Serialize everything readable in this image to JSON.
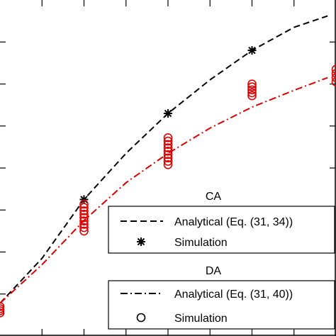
{
  "chart_data": {
    "type": "line",
    "title": "",
    "xlabel": "",
    "ylabel": "",
    "xlim": [
      0,
      8
    ],
    "ylim": [
      0,
      8
    ],
    "xticks": [
      1,
      2,
      3,
      4,
      5,
      6,
      7
    ],
    "yticks": [
      1,
      2,
      3,
      4,
      5,
      6,
      7
    ],
    "grid": false,
    "legend_placement": "bottom-right",
    "colors": {
      "ca": "#000000",
      "da": "#e00000"
    },
    "series": [
      {
        "name": "Analytical (Eq. (31, 34))",
        "group": "CA",
        "style": "dashed",
        "x": [
          0.0,
          1.0,
          2.0,
          3.0,
          4.0,
          5.0,
          6.0,
          7.0,
          7.8
        ],
        "y": [
          0.78,
          1.85,
          3.25,
          4.35,
          5.3,
          6.1,
          6.8,
          7.35,
          7.62
        ]
      },
      {
        "name": "Simulation",
        "group": "CA",
        "marker": "star",
        "x": [
          2.0,
          4.0,
          6.0
        ],
        "y": [
          3.25,
          5.3,
          6.8
        ]
      },
      {
        "name": "Analytical (Eq. (31, 40))",
        "group": "DA",
        "style": "dashdot",
        "x": [
          0.0,
          1.0,
          2.0,
          3.0,
          4.0,
          5.0,
          6.0,
          7.0,
          7.8
        ],
        "y": [
          0.78,
          1.7,
          2.75,
          3.65,
          4.35,
          4.95,
          5.45,
          5.85,
          6.15
        ]
      },
      {
        "name": "Simulation",
        "group": "DA",
        "marker": "circle",
        "points": [
          [
            0.0,
            0.55
          ],
          [
            0.0,
            0.6
          ],
          [
            0.0,
            0.65
          ],
          [
            0.0,
            0.7
          ],
          [
            2.0,
            2.5
          ],
          [
            2.0,
            2.58
          ],
          [
            2.0,
            2.66
          ],
          [
            2.0,
            2.74
          ],
          [
            2.0,
            2.82
          ],
          [
            2.0,
            2.9
          ],
          [
            2.0,
            2.98
          ],
          [
            2.0,
            3.06
          ],
          [
            2.0,
            3.14
          ],
          [
            4.0,
            4.08
          ],
          [
            4.0,
            4.16
          ],
          [
            4.0,
            4.24
          ],
          [
            4.0,
            4.32
          ],
          [
            4.0,
            4.4
          ],
          [
            4.0,
            4.48
          ],
          [
            4.0,
            4.56
          ],
          [
            4.0,
            4.64
          ],
          [
            4.0,
            4.72
          ],
          [
            6.0,
            5.72
          ],
          [
            6.0,
            5.79
          ],
          [
            6.0,
            5.86
          ],
          [
            6.0,
            5.93
          ],
          [
            6.0,
            6.0
          ],
          [
            8.0,
            6.05
          ],
          [
            8.0,
            6.15
          ],
          [
            8.0,
            6.25
          ],
          [
            8.0,
            6.35
          ]
        ]
      }
    ]
  },
  "legend": {
    "ca": {
      "heading": "CA",
      "items": [
        {
          "label": "Analytical (Eq. (31, 34))",
          "symbol": "dashed"
        },
        {
          "label": "Simulation",
          "symbol": "star"
        }
      ]
    },
    "da": {
      "heading": "DA",
      "items": [
        {
          "label": "Analytical (Eq. (31, 40))",
          "symbol": "dashdot"
        },
        {
          "label": "Simulation",
          "symbol": "circle"
        }
      ]
    }
  }
}
